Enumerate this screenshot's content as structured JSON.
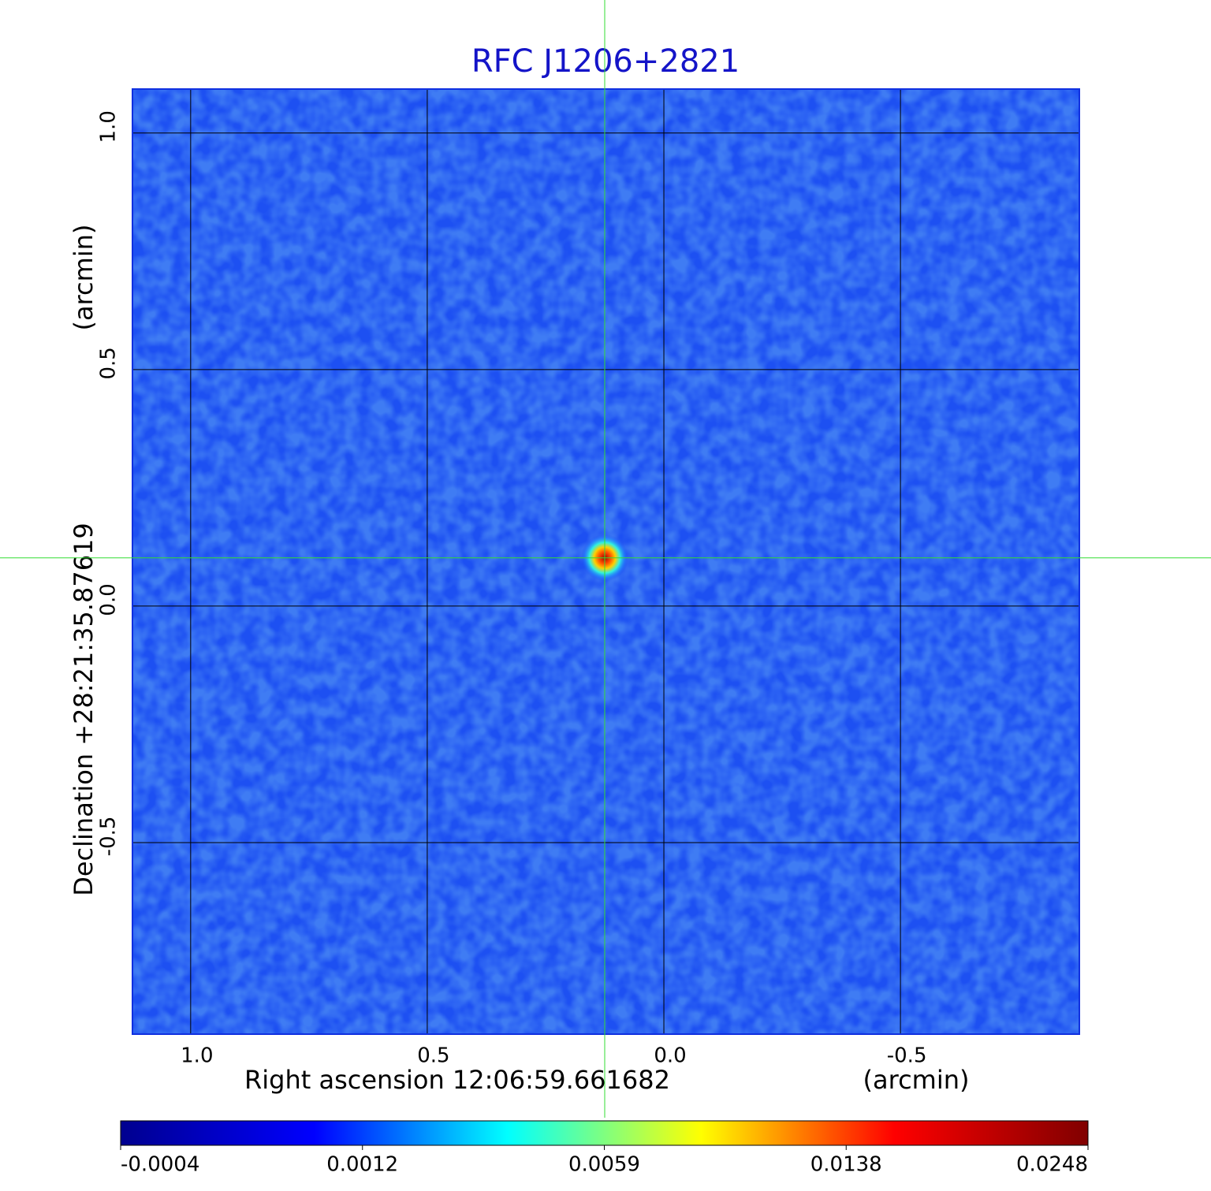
{
  "chart_data": {
    "type": "image",
    "title": "RFC J1206+2821",
    "x_label": "Right ascension  12:06:59.661682",
    "x_unit": "(arcmin)",
    "y_label": "Declination  +28:21:35.87619",
    "y_unit": "(arcmin)",
    "xlim": [
      1.123,
      -0.878
    ],
    "ylim": [
      -0.905,
      1.093
    ],
    "xticks": [
      {
        "value": 1,
        "label": "1.0"
      },
      {
        "value": 0.5,
        "label": "0.5"
      },
      {
        "value": 0,
        "label": "0.0"
      },
      -0.5
    ],
    "yticks": [
      {
        "value": -0.5,
        "label": "-0.5"
      },
      {
        "value": 0,
        "label": "0.0"
      },
      {
        "value": 0.5,
        "label": "0.5"
      },
      {
        "value": 1,
        "label": "1.0"
      }
    ],
    "grid": true,
    "crosshair": {
      "x": 0.125,
      "y": 0.102,
      "color": "#33dd33"
    },
    "source": {
      "x": 0.125,
      "y": 0.102,
      "peak": 0.0248
    },
    "colorbar": {
      "ticks": [
        -0.0004,
        0.0012,
        0.0059,
        0.0138,
        0.0248
      ],
      "colormap": [
        "#00008f",
        "#0000ff",
        "#00ffff",
        "#ffff00",
        "#ff0000",
        "#800000"
      ]
    }
  }
}
